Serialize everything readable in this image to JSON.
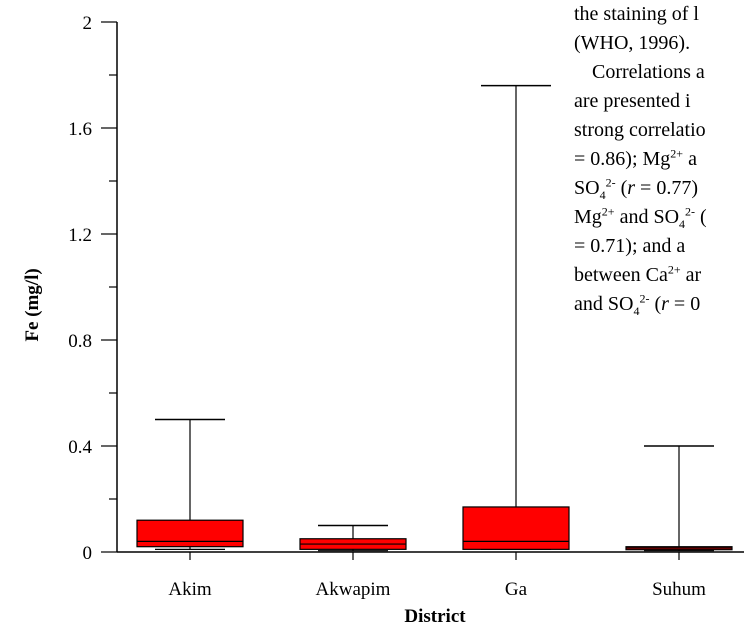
{
  "chart_data": {
    "type": "box",
    "ylabel": "Fe (mg/l)",
    "xlabel": "District",
    "ylim": [
      0,
      2
    ],
    "yticks": [
      "0",
      "0.4",
      "0.8",
      "1.2",
      "1.6",
      "2"
    ],
    "ytick_values": [
      0,
      0.4,
      0.8,
      1.2,
      1.6,
      2
    ],
    "minor_ticks": [
      0.2,
      0.6,
      1.0,
      1.4,
      1.8
    ],
    "box_color": "#ff0000",
    "categories": [
      "Akim",
      "Akwapim",
      "Ga",
      "Suhum"
    ],
    "boxes": [
      {
        "category": "Akim",
        "min": 0.01,
        "q1": 0.02,
        "median": 0.04,
        "q3": 0.12,
        "max": 0.5
      },
      {
        "category": "Akwapim",
        "min": 0.005,
        "q1": 0.01,
        "median": 0.03,
        "q3": 0.05,
        "max": 0.1
      },
      {
        "category": "Ga",
        "min": 0.01,
        "q1": 0.01,
        "median": 0.04,
        "q3": 0.17,
        "max": 1.76
      },
      {
        "category": "Suhum",
        "min": 0.005,
        "q1": 0.01,
        "median": 0.015,
        "q3": 0.02,
        "max": 0.4
      }
    ]
  },
  "side_text": {
    "line1": "the staining of l",
    "line2": "(WHO, 1996).",
    "line3": "Correlations a",
    "line4": "are presented i",
    "line5": "strong correlatio",
    "line6a": "= 0.86);  Mg",
    "line6b": "2+",
    "line6c": " a",
    "line7a": "SO",
    "line7b": "4",
    "line7c": "2-",
    "line7d": " (",
    "line7e": "r",
    "line7f": " = 0.77)",
    "line8a": "Mg",
    "line8b": "2+",
    "line8c": " and SO",
    "line8d": "4",
    "line8e": "2-",
    "line8f": " (",
    "line9": "= 0.71);  and a",
    "line10a": "between Ca",
    "line10b": "2+",
    "line10c": " ar",
    "line11a": "and SO",
    "line11b": "4",
    "line11c": "2-",
    "line11d": " (",
    "line11e": "r",
    "line11f": " = 0"
  }
}
